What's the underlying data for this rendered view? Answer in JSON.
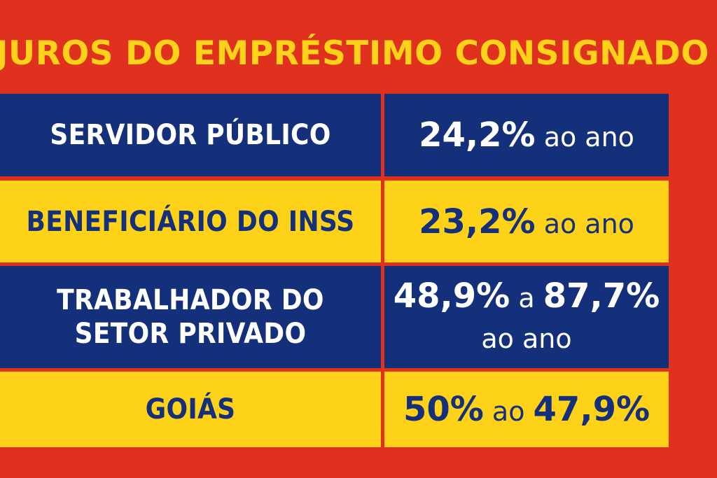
{
  "title": "JUROS DO EMPRÉSTIMO CONSIGNADO",
  "rows": [
    {
      "label_lines": [
        "SERVIDOR PÚBLICO"
      ],
      "value": {
        "num1": "24,2%",
        "mid": " ao ano",
        "num2": "",
        "tail": ""
      }
    },
    {
      "label_lines": [
        "BENEFICIÁRIO DO INSS"
      ],
      "value": {
        "num1": "23,2%",
        "mid": " ao ano",
        "num2": "",
        "tail": ""
      }
    },
    {
      "label_lines": [
        "TRABALHADOR DO",
        "SETOR PRIVADO"
      ],
      "value": {
        "num1": "48,9%",
        "mid": " a ",
        "num2": "87,7%",
        "tail": "ao ano"
      }
    },
    {
      "label_lines": [
        "GOIÁS"
      ],
      "value": {
        "num1": "50%",
        "mid": " ao ",
        "num2": "47,9%",
        "tail": ""
      }
    }
  ],
  "colors": {
    "background": "#e0311f",
    "title": "#ffd21a",
    "blue": "#14307a",
    "yellow": "#ffd21a",
    "white": "#ffffff"
  }
}
